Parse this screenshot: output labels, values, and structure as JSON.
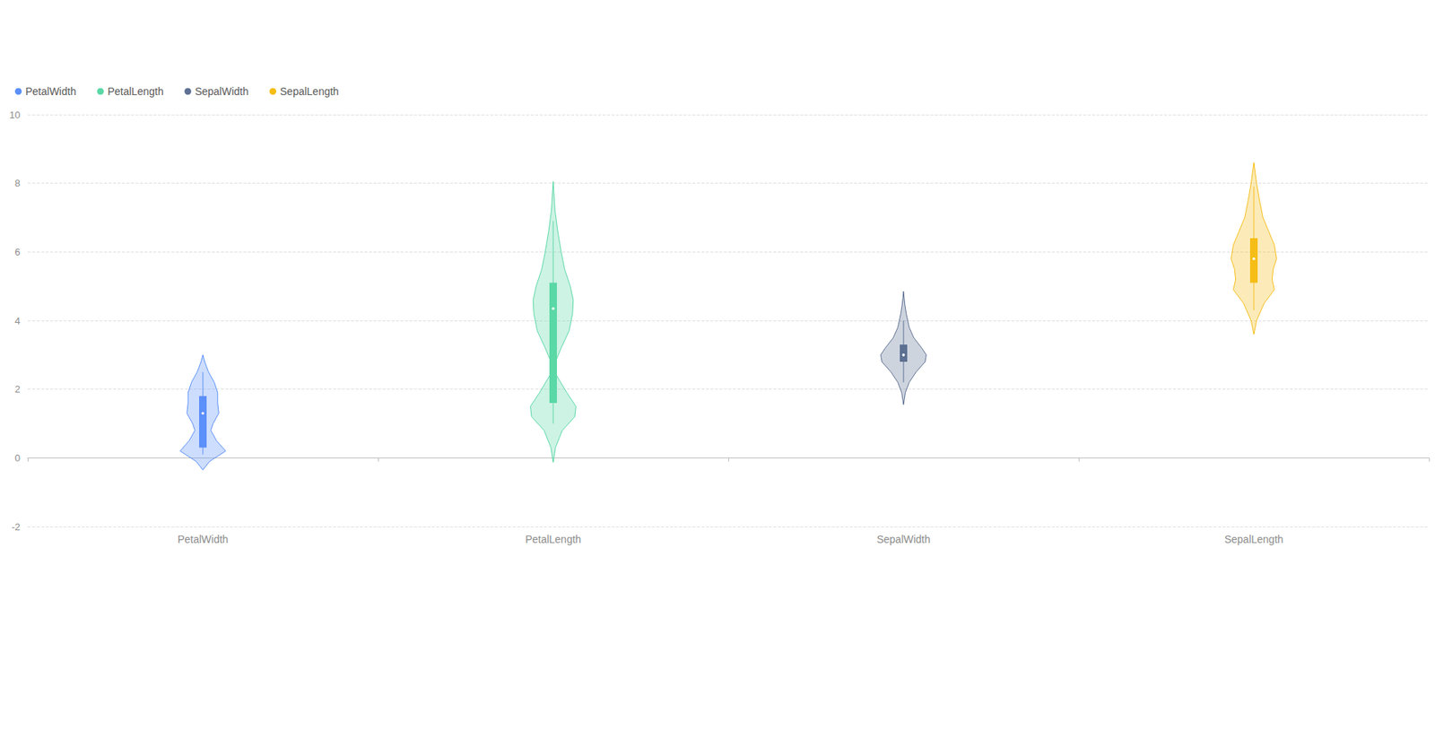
{
  "chart_data": {
    "type": "violin",
    "categories": [
      "PetalWidth",
      "PetalLength",
      "SepalWidth",
      "SepalLength"
    ],
    "ylim": [
      -2,
      10
    ],
    "yticks": [
      -2,
      0,
      2,
      4,
      6,
      8,
      10
    ],
    "grid": true,
    "legend": "top-left",
    "series": [
      {
        "name": "PetalWidth",
        "color": "#5b8ff9",
        "box": {
          "whisker_low": 0.1,
          "q1": 0.3,
          "median": 1.3,
          "q3": 1.8,
          "whisker_high": 2.5
        },
        "density": [
          {
            "y": -0.35,
            "width": 0
          },
          {
            "y": -0.1,
            "width": 0.3
          },
          {
            "y": 0.2,
            "width": 1.0
          },
          {
            "y": 0.5,
            "width": 0.6
          },
          {
            "y": 0.8,
            "width": 0.35
          },
          {
            "y": 1.0,
            "width": 0.45
          },
          {
            "y": 1.3,
            "width": 0.7
          },
          {
            "y": 1.6,
            "width": 0.65
          },
          {
            "y": 1.9,
            "width": 0.65
          },
          {
            "y": 2.2,
            "width": 0.5
          },
          {
            "y": 2.5,
            "width": 0.25
          },
          {
            "y": 2.8,
            "width": 0.08
          },
          {
            "y": 3.0,
            "width": 0
          }
        ]
      },
      {
        "name": "PetalLength",
        "color": "#5ad8a6",
        "box": {
          "whisker_low": 1.0,
          "q1": 1.6,
          "median": 4.35,
          "q3": 5.1,
          "whisker_high": 6.9
        },
        "density": [
          {
            "y": -0.13,
            "width": 0
          },
          {
            "y": 0.3,
            "width": 0.1
          },
          {
            "y": 0.8,
            "width": 0.4
          },
          {
            "y": 1.2,
            "width": 0.95
          },
          {
            "y": 1.5,
            "width": 1.0
          },
          {
            "y": 1.9,
            "width": 0.6
          },
          {
            "y": 2.4,
            "width": 0.15
          },
          {
            "y": 2.8,
            "width": 0.1
          },
          {
            "y": 3.2,
            "width": 0.35
          },
          {
            "y": 3.7,
            "width": 0.7
          },
          {
            "y": 4.2,
            "width": 0.85
          },
          {
            "y": 4.6,
            "width": 0.88
          },
          {
            "y": 5.0,
            "width": 0.75
          },
          {
            "y": 5.5,
            "width": 0.5
          },
          {
            "y": 6.0,
            "width": 0.35
          },
          {
            "y": 6.6,
            "width": 0.2
          },
          {
            "y": 7.2,
            "width": 0.08
          },
          {
            "y": 8.05,
            "width": 0
          }
        ]
      },
      {
        "name": "SepalWidth",
        "color": "#5d7092",
        "box": {
          "whisker_low": 2.2,
          "q1": 2.8,
          "median": 3.0,
          "q3": 3.3,
          "whisker_high": 4.0
        },
        "density": [
          {
            "y": 1.55,
            "width": 0
          },
          {
            "y": 1.9,
            "width": 0.08
          },
          {
            "y": 2.2,
            "width": 0.25
          },
          {
            "y": 2.5,
            "width": 0.55
          },
          {
            "y": 2.8,
            "width": 0.95
          },
          {
            "y": 3.0,
            "width": 1.0
          },
          {
            "y": 3.2,
            "width": 0.8
          },
          {
            "y": 3.5,
            "width": 0.45
          },
          {
            "y": 3.8,
            "width": 0.25
          },
          {
            "y": 4.2,
            "width": 0.12
          },
          {
            "y": 4.5,
            "width": 0.05
          },
          {
            "y": 4.85,
            "width": 0
          }
        ]
      },
      {
        "name": "SepalLength",
        "color": "#f6bd16",
        "box": {
          "whisker_low": 4.3,
          "q1": 5.1,
          "median": 5.8,
          "q3": 6.4,
          "whisker_high": 7.9
        },
        "density": [
          {
            "y": 3.6,
            "width": 0
          },
          {
            "y": 4.0,
            "width": 0.12
          },
          {
            "y": 4.5,
            "width": 0.45
          },
          {
            "y": 4.9,
            "width": 0.9
          },
          {
            "y": 5.2,
            "width": 0.8
          },
          {
            "y": 5.5,
            "width": 0.85
          },
          {
            "y": 5.8,
            "width": 1.0
          },
          {
            "y": 6.2,
            "width": 0.9
          },
          {
            "y": 6.6,
            "width": 0.65
          },
          {
            "y": 7.0,
            "width": 0.4
          },
          {
            "y": 7.5,
            "width": 0.25
          },
          {
            "y": 8.0,
            "width": 0.12
          },
          {
            "y": 8.6,
            "width": 0
          }
        ]
      }
    ]
  }
}
